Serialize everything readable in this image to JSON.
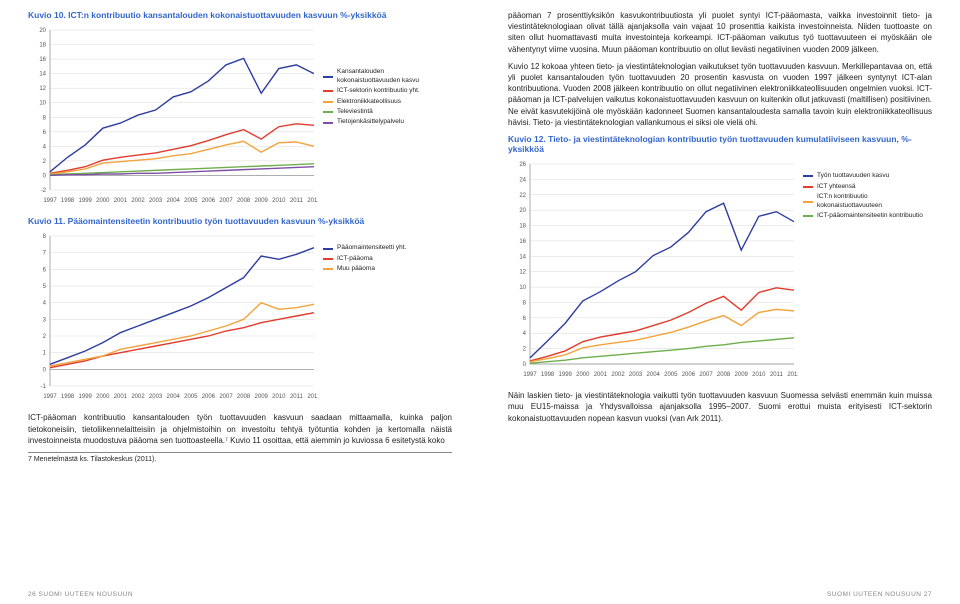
{
  "left": {
    "chart10": {
      "title": "Kuvio 10. ICT:n kontribuutio kansantalouden kokonaistuottavuuden kasvuun %-yksikköä",
      "type": "line",
      "xlim": [
        1997,
        2012
      ],
      "ylim": [
        -2,
        20
      ],
      "ytick_step": 2,
      "years": [
        1997,
        1998,
        1999,
        2000,
        2001,
        2002,
        2003,
        2004,
        2005,
        2006,
        2007,
        2008,
        2009,
        2010,
        2011,
        2012
      ],
      "series": [
        {
          "name": "Kansantalouden kokonaistuottavuuden kasvu",
          "color": "#2e3da1",
          "values": [
            0.5,
            2.5,
            4.2,
            6.5,
            7.2,
            8.3,
            9.0,
            10.8,
            11.5,
            13.0,
            15.2,
            16.1,
            11.3,
            14.7,
            15.2,
            14.0
          ]
        },
        {
          "name": "ICT-sektorin kontribuutio yht.",
          "color": "#e23b2c",
          "values": [
            0.3,
            0.7,
            1.2,
            2.1,
            2.5,
            2.8,
            3.1,
            3.6,
            4.1,
            4.8,
            5.6,
            6.3,
            5.0,
            6.7,
            7.1,
            6.9
          ]
        },
        {
          "name": "Elektroniikkateollisuus",
          "color": "#f2a33c",
          "values": [
            0.2,
            0.5,
            0.9,
            1.7,
            1.9,
            2.1,
            2.3,
            2.7,
            3.0,
            3.6,
            4.2,
            4.7,
            3.2,
            4.5,
            4.6,
            4.0
          ]
        },
        {
          "name": "Televiestintä",
          "color": "#6fae4c",
          "values": [
            0.1,
            0.2,
            0.3,
            0.4,
            0.5,
            0.6,
            0.7,
            0.8,
            0.9,
            1.0,
            1.1,
            1.2,
            1.3,
            1.4,
            1.5,
            1.6
          ]
        },
        {
          "name": "Tietojenkäsittelypalvelu",
          "color": "#7e4fa3",
          "values": [
            0.0,
            0.1,
            0.1,
            0.2,
            0.2,
            0.3,
            0.3,
            0.4,
            0.5,
            0.6,
            0.7,
            0.8,
            0.9,
            1.0,
            1.1,
            1.2
          ]
        }
      ],
      "grid_color": "#d9d9d9",
      "axis_color": "#888888",
      "tick_fontsize": 6
    },
    "chart11": {
      "title": "Kuvio 11. Pääomaintensiteetin kontribuutio työn tuottavuuden kasvuun %-yksikköä",
      "type": "line",
      "xlim": [
        1997,
        2012
      ],
      "ylim": [
        -1,
        8
      ],
      "ytick_step": 1,
      "years": [
        1997,
        1998,
        1999,
        2000,
        2001,
        2002,
        2003,
        2004,
        2005,
        2006,
        2007,
        2008,
        2009,
        2010,
        2011,
        2012
      ],
      "series": [
        {
          "name": "Pääomaintensiteetti yht.",
          "color": "#2e3da1",
          "values": [
            0.3,
            0.7,
            1.1,
            1.6,
            2.2,
            2.6,
            3.0,
            3.4,
            3.8,
            4.3,
            4.9,
            5.5,
            6.8,
            6.6,
            6.9,
            7.3
          ]
        },
        {
          "name": "ICT-pääoma",
          "color": "#e23b2c",
          "values": [
            0.1,
            0.3,
            0.5,
            0.8,
            1.0,
            1.2,
            1.4,
            1.6,
            1.8,
            2.0,
            2.3,
            2.5,
            2.8,
            3.0,
            3.2,
            3.4
          ]
        },
        {
          "name": "Muu pääoma",
          "color": "#f2a33c",
          "values": [
            0.2,
            0.4,
            0.6,
            0.8,
            1.2,
            1.4,
            1.6,
            1.8,
            2.0,
            2.3,
            2.6,
            3.0,
            4.0,
            3.6,
            3.7,
            3.9
          ]
        }
      ],
      "grid_color": "#d9d9d9",
      "axis_color": "#888888",
      "tick_fontsize": 6
    },
    "paragraph": "ICT-pääoman kontribuutio kansantalouden työn tuottavuuden kasvuun saadaan mittaamalla, kuinka paljon tietokoneisiin, tietoliikennelaitteisiin ja ohjelmistoihin on investoitu tehtyä työtuntia kohden ja kertomalla näistä investoinneista muodostuva pääoma sen tuottoasteella.⁷ Kuvio 11 osoittaa, että aiemmin jo kuviossa 6 esitetystä koko",
    "footnote": "7 Menetelmästä ks. Tilastokeskus (2011).",
    "footer": "26   SUOMI UUTEEN NOUSUUN"
  },
  "right": {
    "para1": "pääoman 7 prosenttiyksikön kasvukontribuutiosta yli puolet syntyi ICT-pääomasta, vaikka investoinnit tieto- ja viestintäteknologiaan olivat tällä ajanjaksolla vain vajaat 10 prosenttia kaikista investoinneista. Niiden tuottoaste on siten ollut huomattavasti muita investointeja korkeampi. ICT-pääoman vaikutus työ tuottavuuteen ei myöskään ole vähentynyt viime vuosina. Muun pääoman kontribuutio on ollut lievästi negatiivinen vuoden 2009 jälkeen.",
    "para2": "Kuvio 12 kokoaa yhteen tieto- ja viestintäteknologian vaikutukset työn tuottavuuden kasvuun. Merkillepantavaa on, että yli puolet kansantalouden työn tuottavuuden 20 prosentin kasvusta on vuoden 1997 jälkeen syntynyt ICT-alan kontribuutiona. Vuoden 2008 jälkeen kontribuutio on ollut negatiivinen elektroniikkateollisuuden ongelmien vuoksi. ICT-pääoman ja ICT-palvelujen vaikutus kokonaistuottavuuden kasvuun on kuitenkin ollut jatkuvasti (maltillisen) positiivinen. Ne eivät kasvutekijöinä ole myöskään kadonneet Suomen kansantaloudesta samalla tavoin kuin elektroniikkateollisuus hävisi. Tieto- ja viestintäteknologian vallankumous ei siksi ole vielä ohi.",
    "chart12": {
      "title": "Kuvio 12. Tieto- ja viestintäteknologian kontribuutio työn tuottavuuden kumulatiiviseen kasvuun, %-yksikköä",
      "type": "line",
      "xlim": [
        1997,
        2012
      ],
      "ylim": [
        0,
        26
      ],
      "ytick_step": 2,
      "years": [
        1997,
        1998,
        1999,
        2000,
        2001,
        2002,
        2003,
        2004,
        2005,
        2006,
        2007,
        2008,
        2009,
        2010,
        2011,
        2012
      ],
      "series": [
        {
          "name": "Työn tuottavuuden kasvu",
          "color": "#2e3da1",
          "values": [
            0.8,
            3.0,
            5.3,
            8.2,
            9.4,
            10.8,
            12.0,
            14.1,
            15.2,
            17.1,
            19.8,
            20.9,
            14.8,
            19.2,
            19.8,
            18.5
          ]
        },
        {
          "name": "ICT yhteensä",
          "color": "#e23b2c",
          "values": [
            0.4,
            1.0,
            1.7,
            2.9,
            3.5,
            3.9,
            4.3,
            5.0,
            5.7,
            6.7,
            7.9,
            8.8,
            7.0,
            9.3,
            9.9,
            9.6
          ]
        },
        {
          "name": "ICT:n kontribuutio kokonaistuottavuuteen",
          "color": "#f2a33c",
          "values": [
            0.3,
            0.7,
            1.2,
            2.1,
            2.5,
            2.8,
            3.1,
            3.6,
            4.1,
            4.8,
            5.6,
            6.3,
            5.0,
            6.7,
            7.1,
            6.9
          ]
        },
        {
          "name": "ICT-pääomaintensiteetin kontribuutio",
          "color": "#6fae4c",
          "values": [
            0.1,
            0.3,
            0.5,
            0.8,
            1.0,
            1.2,
            1.4,
            1.6,
            1.8,
            2.0,
            2.3,
            2.5,
            2.8,
            3.0,
            3.2,
            3.4
          ]
        }
      ],
      "grid_color": "#d9d9d9",
      "axis_color": "#888888",
      "tick_fontsize": 6
    },
    "para3": "Näin laskien tieto- ja viestintäteknologia vaikutti työn tuottavuuden kasvuun Suomessa selvästi enemmän kuin muissa muu EU15-maissa ja Yhdysvalloissa ajanjaksolla 1995–2007. Suomi erottui muista erityisesti ICT-sektorin kokonaistuottavuuden nopean kasvun vuoksi (van Ark 2011).",
    "footer": "SUOMI UUTEEN NOUSUUN   27"
  }
}
